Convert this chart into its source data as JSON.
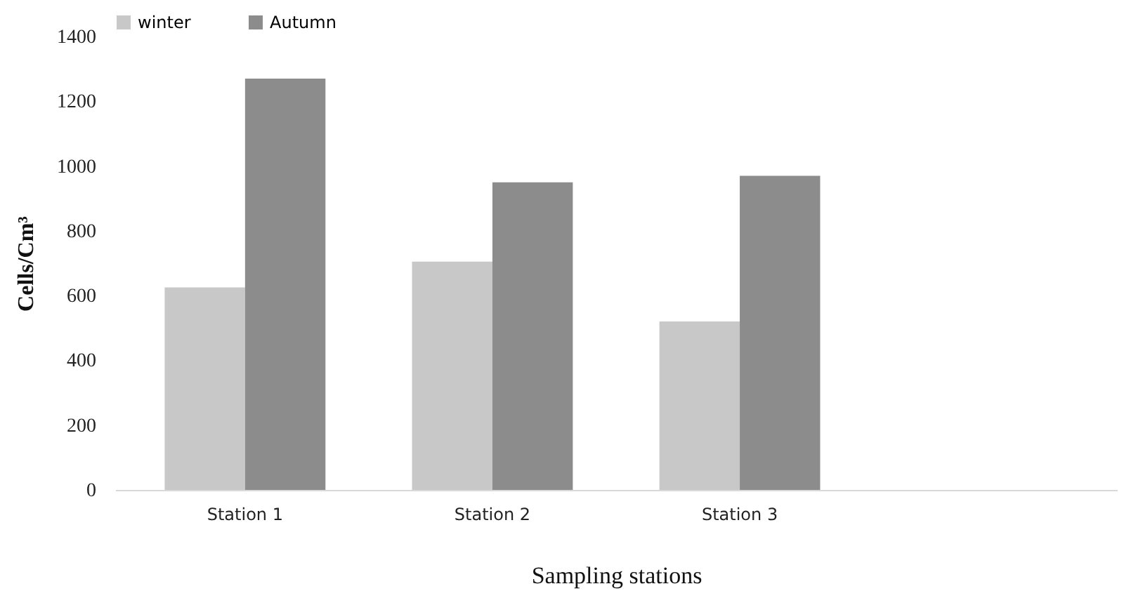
{
  "chart_data": {
    "type": "bar",
    "xlabel": "Sampling stations",
    "ylabel": "Cells/Cm³",
    "categories": [
      "Station 1",
      "Station 2",
      "Station 3",
      null
    ],
    "series": [
      {
        "name": "winter",
        "color": "#c8c8c8",
        "values": [
          625,
          705,
          520,
          null
        ]
      },
      {
        "name": "Autumn",
        "color": "#8c8c8c",
        "values": [
          1270,
          950,
          970,
          null
        ]
      }
    ],
    "ylim": [
      0,
      1400
    ],
    "yticks": [
      0,
      200,
      400,
      600,
      800,
      1000,
      1200,
      1400
    ],
    "grid": false,
    "legend": "top"
  }
}
